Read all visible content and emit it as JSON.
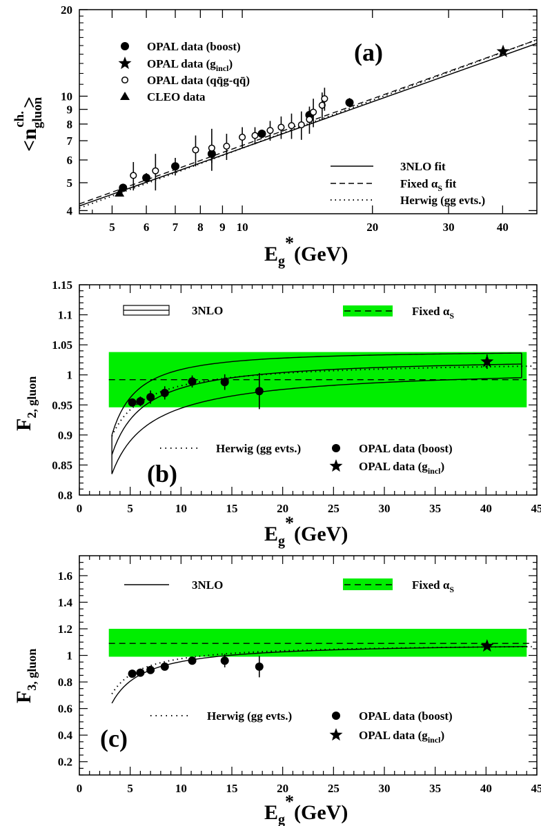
{
  "chart_data": [
    {
      "panel": "a",
      "type": "scatter",
      "panel_label": "(a)",
      "xlabel": "E_g*(GeV)",
      "ylabel": "<n_gluon^ch.>",
      "x_scale": "log",
      "y_scale": "log",
      "xlim": [
        4.2,
        48
      ],
      "ylim": [
        3.9,
        20
      ],
      "x_ticks": [
        5,
        6,
        7,
        8,
        9,
        10,
        20,
        30,
        40
      ],
      "y_ticks": [
        4,
        5,
        6,
        7,
        8,
        9,
        10,
        20
      ],
      "series": [
        {
          "name": "OPAL data (boost)",
          "marker": "filled-circle",
          "points": [
            [
              5.3,
              4.8,
              0.15
            ],
            [
              6.0,
              5.2,
              0.2
            ],
            [
              7.0,
              5.7,
              0.4
            ],
            [
              8.5,
              6.3,
              0.45
            ],
            [
              11.1,
              7.4,
              0.25
            ],
            [
              14.3,
              8.6,
              0.4
            ],
            [
              17.7,
              9.5,
              0.35
            ]
          ]
        },
        {
          "name": "OPAL data (g_incl)",
          "marker": "star",
          "points": [
            [
              40.1,
              14.3,
              0.25
            ]
          ]
        },
        {
          "name": "OPAL data (qq̄g-qq̄)",
          "marker": "open-circle",
          "points": [
            [
              5.6,
              5.3,
              0.6
            ],
            [
              6.3,
              5.5,
              0.8
            ],
            [
              7.8,
              6.5,
              0.8
            ],
            [
              8.5,
              6.6,
              1.1
            ],
            [
              9.2,
              6.7,
              0.7
            ],
            [
              10.0,
              7.2,
              0.6
            ],
            [
              10.7,
              7.3,
              0.5
            ],
            [
              11.6,
              7.6,
              0.6
            ],
            [
              12.3,
              7.8,
              0.7
            ],
            [
              13.0,
              7.9,
              0.8
            ],
            [
              13.7,
              7.95,
              0.9
            ],
            [
              14.3,
              8.3,
              0.9
            ],
            [
              14.6,
              8.8,
              1.0
            ],
            [
              15.3,
              9.3,
              1.0
            ],
            [
              15.5,
              9.8,
              0.9
            ]
          ]
        },
        {
          "name": "CLEO data",
          "marker": "filled-triangle",
          "points": [
            [
              5.2,
              4.6,
              0.05
            ]
          ]
        }
      ],
      "curves": [
        {
          "name": "3NLO fit",
          "style": "solid"
        },
        {
          "name": "Fixed α_S fit",
          "style": "dashed"
        },
        {
          "name": "Herwig (gg evts.)",
          "style": "dotted"
        }
      ]
    },
    {
      "panel": "b",
      "type": "scatter",
      "panel_label": "(b)",
      "xlabel": "E_g*(GeV)",
      "ylabel": "F_2, gluon",
      "xlim": [
        0,
        45
      ],
      "ylim": [
        0.8,
        1.15
      ],
      "x_ticks": [
        0,
        5,
        10,
        15,
        20,
        25,
        30,
        35,
        40,
        45
      ],
      "y_ticks": [
        0.8,
        0.85,
        0.9,
        0.95,
        1,
        1.05,
        1.1,
        1.15
      ],
      "fixed_alpha_band": {
        "center": 0.992,
        "low": 0.946,
        "high": 1.038
      },
      "series": [
        {
          "name": "OPAL data (boost)",
          "marker": "filled-circle",
          "points": [
            [
              5.2,
              0.954,
              0.006
            ],
            [
              6.0,
              0.956,
              0.008
            ],
            [
              7.0,
              0.963,
              0.011
            ],
            [
              8.4,
              0.97,
              0.011
            ],
            [
              11.1,
              0.989,
              0.01
            ],
            [
              14.3,
              0.988,
              0.013
            ],
            [
              17.7,
              0.973,
              0.03
            ]
          ]
        },
        {
          "name": "OPAL data (g_incl)",
          "marker": "star",
          "points": [
            [
              40.1,
              1.022,
              0.012
            ]
          ]
        }
      ],
      "curves": [
        {
          "name": "3NLO",
          "style": "solid-band"
        },
        {
          "name": "Fixed α_S",
          "style": "dashed-band"
        },
        {
          "name": "Herwig (gg evts.)",
          "style": "dotted"
        }
      ]
    },
    {
      "panel": "c",
      "type": "scatter",
      "panel_label": "(c)",
      "xlabel": "E_g*(GeV)",
      "ylabel": "F_3, gluon",
      "xlim": [
        0,
        45
      ],
      "ylim": [
        0.1,
        1.75
      ],
      "x_ticks": [
        0,
        5,
        10,
        15,
        20,
        25,
        30,
        35,
        40,
        45
      ],
      "y_ticks": [
        0.2,
        0.4,
        0.6,
        0.8,
        1,
        1.2,
        1.4,
        1.6
      ],
      "fixed_alpha_band": {
        "center": 1.09,
        "low": 0.99,
        "high": 1.2
      },
      "series": [
        {
          "name": "OPAL data (boost)",
          "marker": "filled-circle",
          "points": [
            [
              5.2,
              0.862,
              0.01
            ],
            [
              6.0,
              0.87,
              0.015
            ],
            [
              7.0,
              0.89,
              0.02
            ],
            [
              8.4,
              0.915,
              0.02
            ],
            [
              11.1,
              0.96,
              0.03
            ],
            [
              14.3,
              0.96,
              0.05
            ],
            [
              17.7,
              0.915,
              0.08
            ]
          ]
        },
        {
          "name": "OPAL data (g_incl)",
          "marker": "star",
          "points": [
            [
              40.1,
              1.07,
              0.02
            ]
          ]
        }
      ],
      "curves": [
        {
          "name": "3NLO",
          "style": "solid"
        },
        {
          "name": "Fixed α_S",
          "style": "dashed-band"
        },
        {
          "name": "Herwig (gg evts.)",
          "style": "dotted"
        }
      ]
    }
  ],
  "band_color": "#00ee00"
}
